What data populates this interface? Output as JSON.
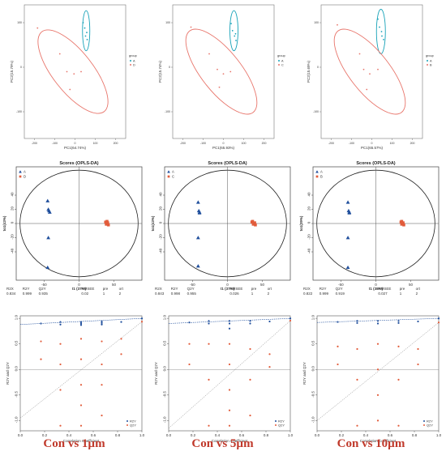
{
  "captions": [
    "Con vs 1µm",
    "Con vs 5µm",
    "Con vs 10µm"
  ],
  "chart_data": [
    {
      "id": "pca-1",
      "type": "scatter",
      "xlabel": "PC1(64.74%)",
      "ylabel": "PC2(15.79%)",
      "xlim": [
        -250,
        250
      ],
      "ylim": [
        -160,
        140
      ],
      "xticks": [
        -200,
        -100,
        0,
        100,
        200
      ],
      "yticks": [
        -100,
        0,
        100
      ],
      "legend": {
        "title": "group",
        "position": "right",
        "entries": [
          "A",
          "D"
        ]
      },
      "ellipses": [
        {
          "group": "A",
          "color": "#17a2b8",
          "cx": 55,
          "cy": 82,
          "rx": 18,
          "ry": 45,
          "angle_deg": 0
        },
        {
          "group": "D",
          "color": "#e8756b",
          "cx": -10,
          "cy": -10,
          "rx": 250,
          "ry": 45,
          "angle_deg": -33
        }
      ],
      "series": [
        {
          "name": "A",
          "color": "#17a2b8",
          "x": [
            40,
            48,
            52,
            60,
            58
          ],
          "y": [
            100,
            88,
            70,
            62,
            78
          ]
        },
        {
          "name": "D",
          "color": "#e8756b",
          "x": [
            -185,
            -75,
            -40,
            -5,
            30,
            -25
          ],
          "y": [
            88,
            30,
            -10,
            -15,
            -10,
            -50
          ]
        }
      ]
    },
    {
      "id": "pca-2",
      "type": "scatter",
      "xlabel": "PC1(65.93%)",
      "ylabel": "PC2(15.74%)",
      "xlim": [
        -250,
        250
      ],
      "ylim": [
        -160,
        140
      ],
      "xticks": [
        -200,
        -100,
        0,
        100,
        200
      ],
      "yticks": [
        -100,
        0,
        100
      ],
      "legend": {
        "title": "group",
        "position": "right",
        "entries": [
          "A",
          "C"
        ]
      },
      "ellipses": [
        {
          "group": "A",
          "color": "#17a2b8",
          "cx": 52,
          "cy": 82,
          "rx": 20,
          "ry": 45,
          "angle_deg": 8
        },
        {
          "group": "C",
          "color": "#e8756b",
          "cx": -10,
          "cy": -10,
          "rx": 255,
          "ry": 45,
          "angle_deg": -33
        }
      ],
      "series": [
        {
          "name": "A",
          "color": "#17a2b8",
          "x": [
            38,
            45,
            55,
            62,
            60
          ],
          "y": [
            98,
            82,
            70,
            60,
            75
          ]
        },
        {
          "name": "C",
          "color": "#e8756b",
          "x": [
            -160,
            -70,
            -30,
            0,
            35,
            -20
          ],
          "y": [
            90,
            30,
            -5,
            -15,
            -10,
            -45
          ]
        }
      ]
    },
    {
      "id": "pca-3",
      "type": "scatter",
      "xlabel": "PC1(65.57%)",
      "ylabel": "PC2(15.69%)",
      "xlim": [
        -250,
        250
      ],
      "ylim": [
        -160,
        140
      ],
      "xticks": [
        -200,
        -100,
        0,
        100,
        200
      ],
      "yticks": [
        -100,
        0,
        100
      ],
      "legend": {
        "title": "group",
        "position": "right",
        "entries": [
          "A",
          "B"
        ]
      },
      "ellipses": [
        {
          "group": "A",
          "color": "#17a2b8",
          "cx": 45,
          "cy": 80,
          "rx": 22,
          "ry": 50,
          "angle_deg": 0
        },
        {
          "group": "B",
          "color": "#e8756b",
          "cx": -10,
          "cy": -10,
          "rx": 255,
          "ry": 45,
          "angle_deg": -33
        }
      ],
      "series": [
        {
          "name": "A",
          "color": "#17a2b8",
          "x": [
            30,
            38,
            48,
            58,
            50
          ],
          "y": [
            108,
            90,
            80,
            62,
            70
          ]
        },
        {
          "name": "B",
          "color": "#e8756b",
          "x": [
            -170,
            -60,
            -40,
            -10,
            30,
            -25
          ],
          "y": [
            95,
            30,
            -5,
            -15,
            -5,
            -50
          ]
        }
      ]
    },
    {
      "id": "oplsda-1",
      "type": "scatter",
      "title": "Scores (OPLS-DA)",
      "xlabel": "t1 (37%)",
      "ylabel": "to1(43%)",
      "xlim": [
        -90,
        90
      ],
      "ylim": [
        -80,
        80
      ],
      "xticks": [
        -50,
        0,
        50
      ],
      "yticks": [
        -40,
        -20,
        0,
        20,
        40
      ],
      "legend": {
        "position": "top-left",
        "entries": [
          "A",
          "D"
        ]
      },
      "series": [
        {
          "name": "A",
          "color": "#1f4e9c",
          "marker": "triangle",
          "x": [
            -45,
            -44,
            -42,
            -44,
            -45,
            -43
          ],
          "y": [
            32,
            20,
            16,
            -20,
            -62,
            18
          ]
        },
        {
          "name": "D",
          "color": "#e25c3b",
          "marker": "square",
          "x": [
            38,
            39,
            40,
            41,
            42,
            40
          ],
          "y": [
            2,
            -1,
            0,
            1,
            -2,
            3
          ]
        }
      ],
      "stats": {
        "labels": [
          "R2X",
          "R2Y",
          "Q2Y",
          "RMSEE",
          "pre",
          "ort"
        ],
        "values": [
          "0.834",
          "0.999",
          "0.935",
          "0.02",
          "1",
          "2"
        ]
      }
    },
    {
      "id": "oplsda-2",
      "type": "scatter",
      "title": "Scores (OPLS-DA)",
      "xlabel": "t1 (37%)",
      "ylabel": "to1(43%)",
      "xlim": [
        -90,
        90
      ],
      "ylim": [
        -80,
        80
      ],
      "xticks": [
        -50,
        0,
        50
      ],
      "yticks": [
        -40,
        -20,
        0,
        20,
        40
      ],
      "legend": {
        "position": "top-left",
        "entries": [
          "A",
          "C"
        ]
      },
      "series": [
        {
          "name": "A",
          "color": "#1f4e9c",
          "marker": "triangle",
          "x": [
            -42,
            -41,
            -40,
            -42,
            -42,
            -40
          ],
          "y": [
            30,
            18,
            15,
            -20,
            -60,
            16
          ]
        },
        {
          "name": "C",
          "color": "#e25c3b",
          "marker": "square",
          "x": [
            35,
            37,
            38,
            39,
            40,
            36
          ],
          "y": [
            2,
            -1,
            0,
            1,
            -2,
            3
          ]
        }
      ],
      "stats": {
        "labels": [
          "R2X",
          "R2Y",
          "Q2Y",
          "RMSEE",
          "pre",
          "ort"
        ],
        "values": [
          "0.843",
          "0.998",
          "0.955",
          "0.026",
          "1",
          "2"
        ]
      }
    },
    {
      "id": "oplsda-3",
      "type": "scatter",
      "title": "Scores (OPLS-DA)",
      "xlabel": "t1 (38%)",
      "ylabel": "to1(39%)",
      "xlim": [
        -90,
        90
      ],
      "ylim": [
        -80,
        80
      ],
      "xticks": [
        -50,
        0,
        50
      ],
      "yticks": [
        -40,
        -20,
        0,
        20,
        40
      ],
      "legend": {
        "position": "top-left",
        "entries": [
          "A",
          "B"
        ]
      },
      "series": [
        {
          "name": "A",
          "color": "#1f4e9c",
          "marker": "triangle",
          "x": [
            -40,
            -39,
            -38,
            -40,
            -40,
            -38
          ],
          "y": [
            30,
            18,
            15,
            -20,
            -62,
            16
          ]
        },
        {
          "name": "B",
          "color": "#e25c3b",
          "marker": "square",
          "x": [
            36,
            37,
            38,
            39,
            40,
            37
          ],
          "y": [
            2,
            -1,
            0,
            1,
            -2,
            3
          ]
        }
      ],
      "stats": {
        "labels": [
          "R2X",
          "R2Y",
          "Q2Y",
          "RMSEE",
          "pre",
          "ort"
        ],
        "values": [
          "0.822",
          "0.999",
          "0.919",
          "0.027",
          "1",
          "2"
        ]
      }
    },
    {
      "id": "perm-1",
      "type": "scatter",
      "xlabel": "Correlation Coefficient",
      "ylabel": "R2Y and Q2Y",
      "xlim": [
        0,
        1
      ],
      "ylim": [
        -1.2,
        1.05
      ],
      "xticks": [
        0.0,
        0.2,
        0.4,
        0.6,
        0.8,
        1.0
      ],
      "yticks": [
        -1.0,
        -0.5,
        0.0,
        0.5,
        1.0
      ],
      "legend": {
        "position": "bottom-right",
        "entries": [
          "R2Y",
          "Q2Y"
        ]
      },
      "r2y_intercept": 0.88,
      "q2y_intercept": -0.95,
      "series": [
        {
          "name": "R2Y",
          "color": "#1f4e9c",
          "x": [
            0.17,
            0.33,
            0.33,
            0.5,
            0.5,
            0.5,
            0.67,
            0.67,
            0.67,
            0.83,
            1.0
          ],
          "y": [
            0.9,
            0.88,
            0.93,
            0.87,
            0.9,
            0.93,
            0.88,
            0.91,
            0.94,
            0.93,
            0.999
          ]
        },
        {
          "name": "Q2Y",
          "color": "#e25c3b",
          "x": [
            0.17,
            0.17,
            0.33,
            0.33,
            0.33,
            0.33,
            0.5,
            0.5,
            0.5,
            0.5,
            0.5,
            0.67,
            0.67,
            0.67,
            0.67,
            0.83,
            0.83,
            1.0
          ],
          "y": [
            0.55,
            0.2,
            0.5,
            0.1,
            -0.4,
            -1.1,
            0.6,
            0.2,
            -0.3,
            -0.7,
            -1.1,
            0.55,
            0.1,
            -0.3,
            -0.9,
            0.6,
            0.3,
            0.935
          ]
        }
      ]
    },
    {
      "id": "perm-2",
      "type": "scatter",
      "xlabel": "Correlation Coefficient",
      "ylabel": "R2Y and Q2Y",
      "xlim": [
        0,
        1
      ],
      "ylim": [
        -1.2,
        1.05
      ],
      "xticks": [
        0.0,
        0.2,
        0.4,
        0.6,
        0.8,
        1.0
      ],
      "yticks": [
        -1.0,
        -0.5,
        0.0,
        0.5,
        1.0
      ],
      "legend": {
        "position": "bottom-right",
        "entries": [
          "R2Y",
          "Q2Y"
        ]
      },
      "r2y_intercept": 0.9,
      "q2y_intercept": -1.15,
      "series": [
        {
          "name": "R2Y",
          "color": "#1f4e9c",
          "x": [
            0.17,
            0.33,
            0.33,
            0.5,
            0.5,
            0.5,
            0.67,
            0.67,
            0.83,
            1.0
          ],
          "y": [
            0.92,
            0.9,
            0.95,
            0.8,
            0.9,
            0.95,
            0.9,
            0.95,
            0.94,
            0.998
          ]
        },
        {
          "name": "Q2Y",
          "color": "#e25c3b",
          "x": [
            0.17,
            0.17,
            0.33,
            0.33,
            0.33,
            0.5,
            0.5,
            0.5,
            0.5,
            0.5,
            0.67,
            0.67,
            0.67,
            0.83,
            0.83,
            1.0
          ],
          "y": [
            0.5,
            0.1,
            0.5,
            -0.2,
            -1.1,
            0.5,
            0.1,
            -0.4,
            -0.8,
            -1.1,
            0.4,
            -0.2,
            -0.9,
            0.3,
            0.05,
            0.955
          ]
        }
      ]
    },
    {
      "id": "perm-3",
      "type": "scatter",
      "xlabel": "Correlation Coefficient",
      "ylabel": "R2Y and Q2Y",
      "xlim": [
        0,
        1
      ],
      "ylim": [
        -1.2,
        1.05
      ],
      "xticks": [
        0.0,
        0.2,
        0.4,
        0.6,
        0.8,
        1.0
      ],
      "yticks": [
        -1.0,
        -0.5,
        0.0,
        0.5,
        1.0
      ],
      "legend": {
        "position": "bottom-right",
        "entries": [
          "R2Y",
          "Q2Y"
        ]
      },
      "r2y_intercept": 0.92,
      "q2y_intercept": -1.0,
      "series": [
        {
          "name": "R2Y",
          "color": "#1f4e9c",
          "x": [
            0.17,
            0.33,
            0.33,
            0.5,
            0.5,
            0.67,
            0.67,
            0.83,
            1.0
          ],
          "y": [
            0.93,
            0.91,
            0.95,
            0.9,
            0.95,
            0.91,
            0.95,
            0.94,
            0.999
          ]
        },
        {
          "name": "Q2Y",
          "color": "#e25c3b",
          "x": [
            0.17,
            0.17,
            0.33,
            0.33,
            0.33,
            0.5,
            0.5,
            0.5,
            0.5,
            0.67,
            0.67,
            0.67,
            0.83,
            0.83,
            1.0
          ],
          "y": [
            0.45,
            0.1,
            0.4,
            -0.2,
            -1.1,
            0.5,
            0.0,
            -0.5,
            -1.0,
            0.45,
            -0.2,
            -1.1,
            0.4,
            0.1,
            0.919
          ]
        }
      ]
    }
  ]
}
